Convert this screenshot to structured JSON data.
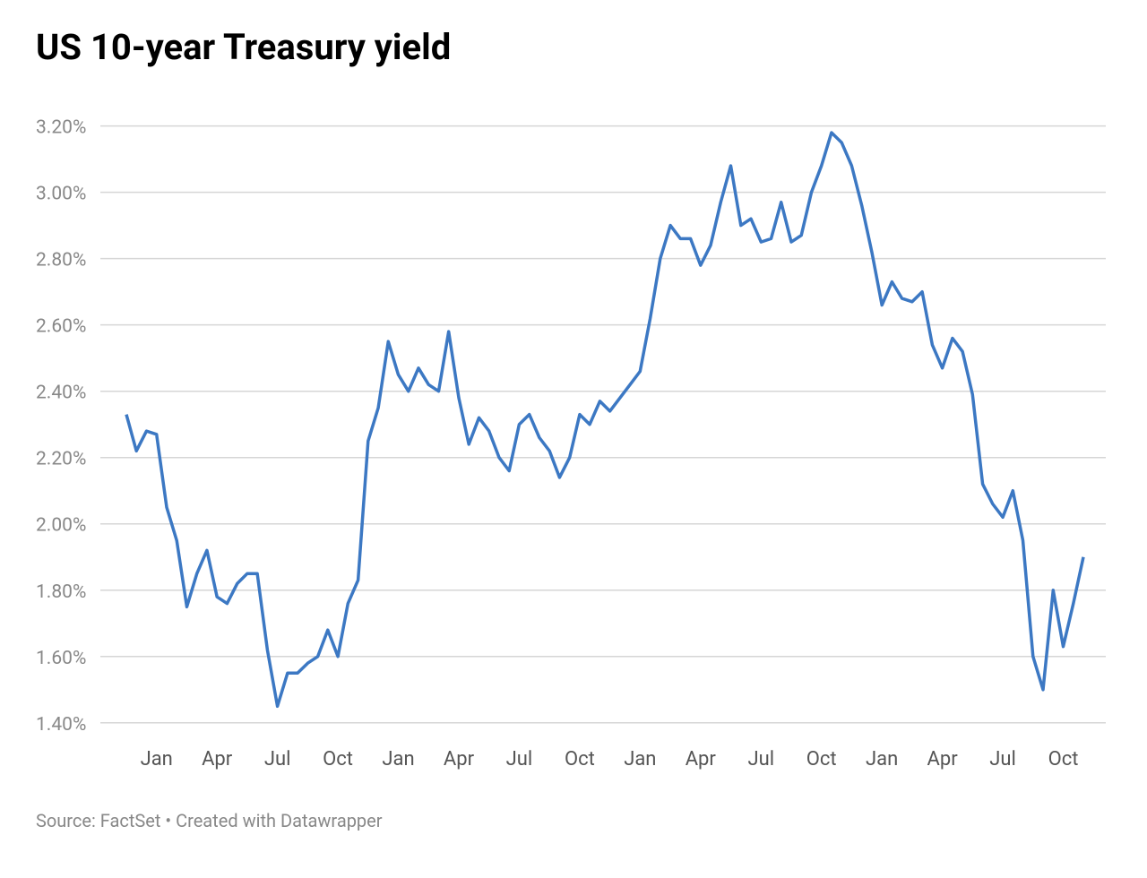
{
  "chart_data": {
    "type": "line",
    "title": "US 10-year Treasury yield",
    "source": "Source: FactSet • Created with Datawrapper",
    "categories": [
      null,
      null,
      null,
      "Jan",
      null,
      null,
      null,
      null,
      null,
      "Apr",
      null,
      null,
      null,
      null,
      null,
      "Jul",
      null,
      null,
      null,
      null,
      null,
      "Oct",
      null,
      null,
      null,
      null,
      null,
      "Jan",
      null,
      null,
      null,
      null,
      null,
      "Apr",
      null,
      null,
      null,
      null,
      null,
      "Jul",
      null,
      null,
      null,
      null,
      null,
      "Oct",
      null,
      null,
      null,
      null,
      null,
      "Jan",
      null,
      null,
      null,
      null,
      null,
      "Apr",
      null,
      null,
      null,
      null,
      null,
      "Jul",
      null,
      null,
      null,
      null,
      null,
      "Oct",
      null,
      null,
      null,
      null,
      null,
      "Jan",
      null,
      null,
      null,
      null,
      null,
      "Apr",
      null,
      null,
      null,
      null,
      null,
      "Jul",
      null,
      null,
      null,
      null,
      null,
      "Oct",
      null,
      null
    ],
    "series": [
      {
        "name": "US 10-year Treasury yield",
        "color": "#3c78c3",
        "values": [
          2.33,
          2.22,
          2.28,
          2.27,
          2.05,
          1.95,
          1.75,
          1.85,
          1.92,
          1.78,
          1.76,
          1.82,
          1.85,
          1.85,
          1.62,
          1.45,
          1.55,
          1.55,
          1.58,
          1.6,
          1.68,
          1.6,
          1.76,
          1.83,
          2.25,
          2.35,
          2.55,
          2.45,
          2.4,
          2.47,
          2.42,
          2.4,
          2.58,
          2.38,
          2.24,
          2.32,
          2.28,
          2.2,
          2.16,
          2.3,
          2.33,
          2.26,
          2.22,
          2.14,
          2.2,
          2.33,
          2.3,
          2.37,
          2.34,
          2.38,
          2.42,
          2.46,
          2.62,
          2.8,
          2.9,
          2.86,
          2.86,
          2.78,
          2.84,
          2.97,
          3.08,
          2.9,
          2.92,
          2.85,
          2.86,
          2.97,
          2.85,
          2.87,
          3.0,
          3.08,
          3.18,
          3.15,
          3.08,
          2.96,
          2.82,
          2.66,
          2.73,
          2.68,
          2.67,
          2.7,
          2.54,
          2.47,
          2.56,
          2.52,
          2.39,
          2.12,
          2.06,
          2.02,
          2.1,
          1.95,
          1.6,
          1.5,
          1.8,
          1.63,
          1.76,
          1.9
        ]
      }
    ],
    "ylim": [
      1.34,
      3.28
    ],
    "yticks": [
      {
        "value": 1.4,
        "label": "1.40%"
      },
      {
        "value": 1.6,
        "label": "1.60%"
      },
      {
        "value": 1.8,
        "label": "1.80%"
      },
      {
        "value": 2.0,
        "label": "2.00%"
      },
      {
        "value": 2.2,
        "label": "2.20%"
      },
      {
        "value": 2.4,
        "label": "2.40%"
      },
      {
        "value": 2.6,
        "label": "2.60%"
      },
      {
        "value": 2.8,
        "label": "2.80%"
      },
      {
        "value": 3.0,
        "label": "3.00%"
      },
      {
        "value": 3.2,
        "label": "3.20%"
      }
    ],
    "grid": true
  }
}
